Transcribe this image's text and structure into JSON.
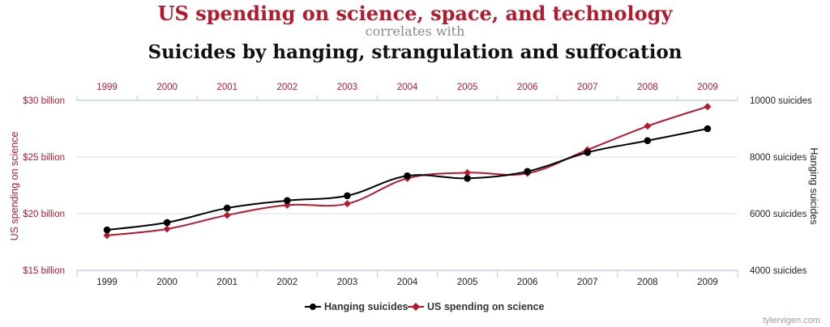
{
  "header": {
    "line1": "US spending on science, space, and technology",
    "line2": "correlates with",
    "line3": "Suicides by hanging, strangulation and suffocation"
  },
  "colors": {
    "science": "#b5192e",
    "hanging": "#000000",
    "grid": "#d6e0ea",
    "axis": "#b9cadb",
    "title_gray": "#8a8a8a",
    "credit": "#9a9a9a"
  },
  "chart_data": {
    "type": "line",
    "x": [
      1999,
      2000,
      2001,
      2002,
      2003,
      2004,
      2005,
      2006,
      2007,
      2008,
      2009
    ],
    "top_tick_labels": [
      "1999",
      "2000",
      "2001",
      "2002",
      "2003",
      "2004",
      "2005",
      "2006",
      "2007",
      "2008",
      "2009"
    ],
    "bottom_tick_labels": [
      "1999",
      "2000",
      "2001",
      "2002",
      "2003",
      "2004",
      "2005",
      "2006",
      "2007",
      "2008",
      "2009"
    ],
    "series": [
      {
        "name": "US spending on science",
        "axis": "left",
        "marker": "diamond",
        "values": [
          18.08,
          18.65,
          19.87,
          20.76,
          20.88,
          23.12,
          23.62,
          23.56,
          25.63,
          27.73,
          29.45
        ]
      },
      {
        "name": "Hanging suicides",
        "axis": "right",
        "marker": "circle",
        "values": [
          5427,
          5688,
          6198,
          6462,
          6635,
          7336,
          7248,
          7491,
          8161,
          8578,
          9000
        ]
      }
    ],
    "left_axis": {
      "title": "US spending on science",
      "range": [
        15,
        30
      ],
      "ticks": [
        15,
        20,
        25,
        30
      ],
      "tick_labels": [
        "$15 billion",
        "$20 billion",
        "$25 billion",
        "$30 billion"
      ]
    },
    "right_axis": {
      "title": "Hanging suicides",
      "range": [
        4000,
        10000
      ],
      "ticks": [
        4000,
        6000,
        8000,
        10000
      ],
      "tick_labels": [
        "4000 suicides",
        "6000 suicides",
        "8000 suicides",
        "10000 suicides"
      ]
    },
    "legend": [
      "Hanging suicides",
      "US spending on science"
    ],
    "legend_position": "bottom-center",
    "grid": true
  },
  "credit": "tylervigen.com"
}
